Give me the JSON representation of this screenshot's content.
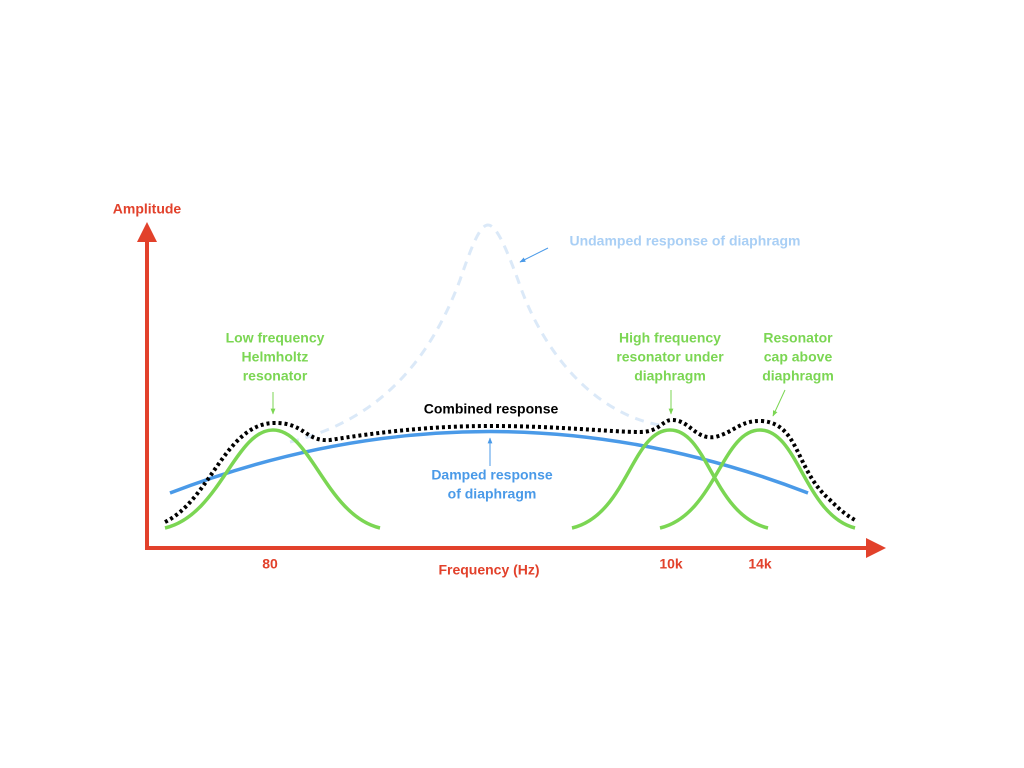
{
  "axes": {
    "y_label": "Amplitude",
    "x_label": "Frequency (Hz)",
    "x_ticks": [
      "80",
      "10k",
      "14k"
    ]
  },
  "annotations": {
    "undamped": "Undamped response of diaphragm",
    "low_resonator": [
      "Low frequency",
      "Helmholtz",
      "resonator"
    ],
    "combined": "Combined response",
    "damped": [
      "Damped response",
      "of diaphragm"
    ],
    "high_resonator": [
      "High frequency",
      "resonator under",
      "diaphragm"
    ],
    "cap_resonator": [
      "Resonator",
      "cap above",
      "diaphragm"
    ]
  }
}
